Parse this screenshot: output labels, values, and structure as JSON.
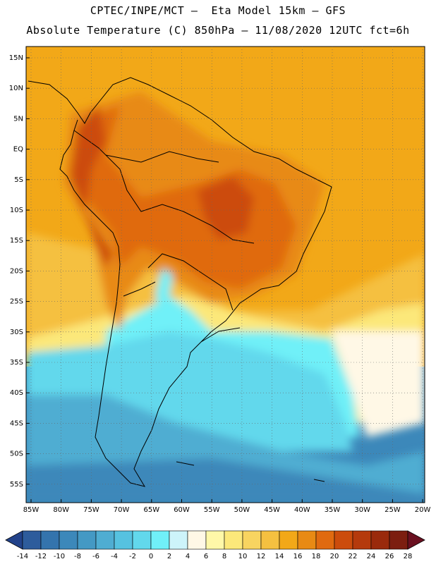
{
  "header": {
    "line1": "CPTEC/INPE/MCT –  Eta Model 15km – GFS",
    "line2": "Absolute Temperature (C) 850hPa – 11/08/2020 12UTC fct=6h"
  },
  "axes": {
    "lat_labels": [
      "15N",
      "10N",
      "5N",
      "EQ",
      "5S",
      "10S",
      "15S",
      "20S",
      "25S",
      "30S",
      "35S",
      "40S",
      "45S",
      "50S",
      "55S"
    ],
    "lon_labels": [
      "85W",
      "80W",
      "75W",
      "70W",
      "65W",
      "60W",
      "55W",
      "50W",
      "45W",
      "40W",
      "35W",
      "30W",
      "25W",
      "20W"
    ]
  },
  "colorbar": {
    "labels": [
      "-14",
      "-12",
      "-10",
      "-8",
      "-6",
      "-4",
      "-2",
      "0",
      "2",
      "4",
      "6",
      "8",
      "10",
      "12",
      "14",
      "16",
      "18",
      "20",
      "22",
      "24",
      "26",
      "28"
    ],
    "colors": [
      "#22428a",
      "#2d5c9c",
      "#3474ad",
      "#3c88ba",
      "#4499c4",
      "#4fadd2",
      "#56c2e0",
      "#62d8ec",
      "#70f0f8",
      "#cdf4fa",
      "#fff8e6",
      "#fff8a8",
      "#fce87a",
      "#f8d460",
      "#f5c040",
      "#f2a818",
      "#e88a14",
      "#e06a10",
      "#cc4c0c",
      "#b53a0c",
      "#9a2a0c",
      "#7c1e10",
      "#6a1020"
    ]
  },
  "field_colors": {
    "ocean_south": "#3c88ba",
    "ocean_cold": "#4fadd2",
    "cold": "#62d8ec",
    "cool": "#70f0f8",
    "mild": "#fff8e6",
    "warm_yellow": "#fce87a",
    "yellow": "#f5c040",
    "orange": "#f2a818",
    "hot": "#e88a14",
    "very_hot": "#e06a10",
    "extreme": "#cc4c0c"
  }
}
